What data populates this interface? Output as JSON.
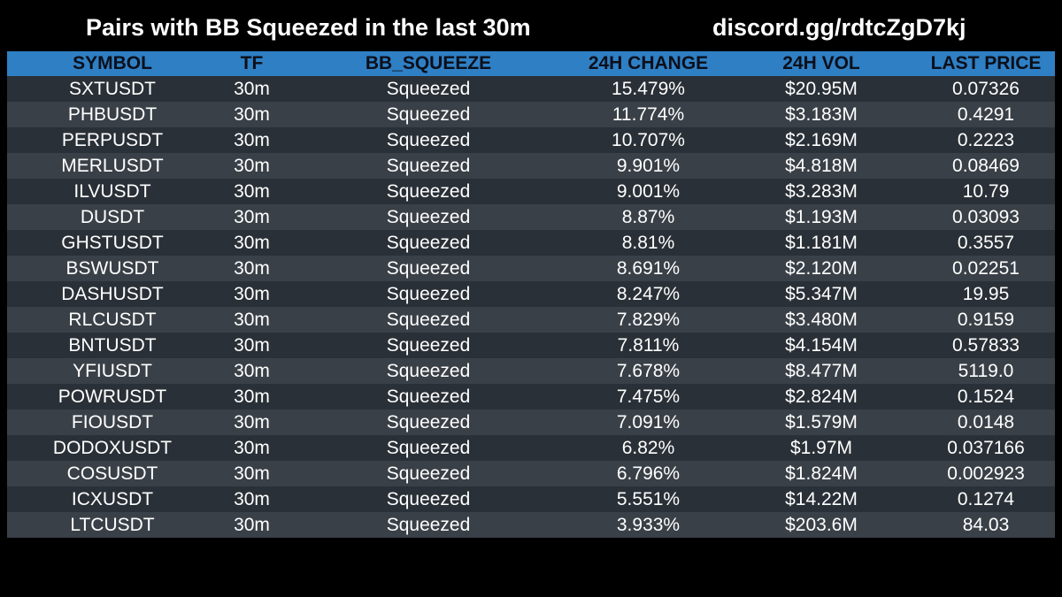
{
  "header": {
    "title": "Pairs with BB Squeezed in the last 30m",
    "link": "discord.gg/rdtcZgD7kj"
  },
  "table": {
    "columns": [
      "SYMBOL",
      "TF",
      "BB_SQUEEZE",
      "24H CHANGE",
      "24H VOL",
      "LAST PRICE"
    ],
    "rows": [
      [
        "SXTUSDT",
        "30m",
        "Squeezed",
        "15.479%",
        "$20.95M",
        "0.07326"
      ],
      [
        "PHBUSDT",
        "30m",
        "Squeezed",
        "11.774%",
        "$3.183M",
        "0.4291"
      ],
      [
        "PERPUSDT",
        "30m",
        "Squeezed",
        "10.707%",
        "$2.169M",
        "0.2223"
      ],
      [
        "MERLUSDT",
        "30m",
        "Squeezed",
        "9.901%",
        "$4.818M",
        "0.08469"
      ],
      [
        "ILVUSDT",
        "30m",
        "Squeezed",
        "9.001%",
        "$3.283M",
        "10.79"
      ],
      [
        "DUSDT",
        "30m",
        "Squeezed",
        "8.87%",
        "$1.193M",
        "0.03093"
      ],
      [
        "GHSTUSDT",
        "30m",
        "Squeezed",
        "8.81%",
        "$1.181M",
        "0.3557"
      ],
      [
        "BSWUSDT",
        "30m",
        "Squeezed",
        "8.691%",
        "$2.120M",
        "0.02251"
      ],
      [
        "DASHUSDT",
        "30m",
        "Squeezed",
        "8.247%",
        "$5.347M",
        "19.95"
      ],
      [
        "RLCUSDT",
        "30m",
        "Squeezed",
        "7.829%",
        "$3.480M",
        "0.9159"
      ],
      [
        "BNTUSDT",
        "30m",
        "Squeezed",
        "7.811%",
        "$4.154M",
        "0.57833"
      ],
      [
        "YFIUSDT",
        "30m",
        "Squeezed",
        "7.678%",
        "$8.477M",
        "5119.0"
      ],
      [
        "POWRUSDT",
        "30m",
        "Squeezed",
        "7.475%",
        "$2.824M",
        "0.1524"
      ],
      [
        "FIOUSDT",
        "30m",
        "Squeezed",
        "7.091%",
        "$1.579M",
        "0.0148"
      ],
      [
        "DODOXUSDT",
        "30m",
        "Squeezed",
        "6.82%",
        "$1.97M",
        "0.037166"
      ],
      [
        "COSUSDT",
        "30m",
        "Squeezed",
        "6.796%",
        "$1.824M",
        "0.002923"
      ],
      [
        "ICXUSDT",
        "30m",
        "Squeezed",
        "5.551%",
        "$14.22M",
        "0.1274"
      ],
      [
        "LTCUSDT",
        "30m",
        "Squeezed",
        "3.933%",
        "$203.6M",
        "84.03"
      ]
    ]
  },
  "colors": {
    "header_bg": "#2f7fc4",
    "row_odd": "#2a3037",
    "row_even": "#3a4047",
    "background": "#000000"
  }
}
